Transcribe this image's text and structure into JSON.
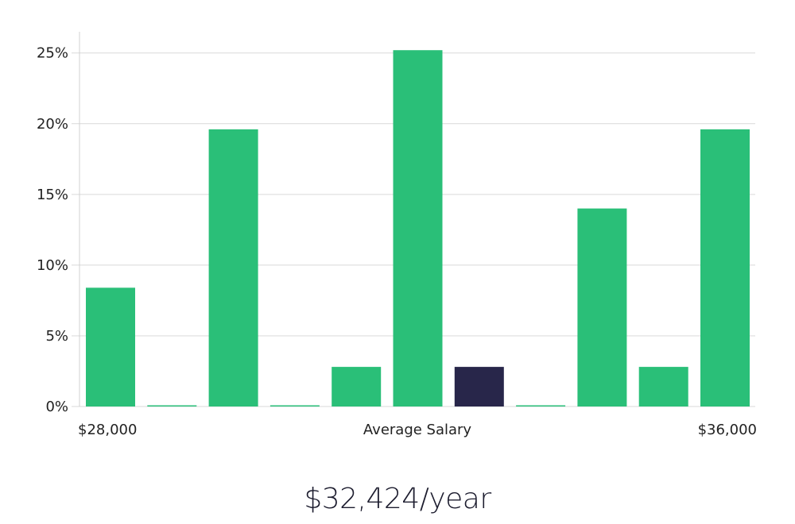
{
  "chart_data": {
    "type": "bar",
    "title": "",
    "xlabel": "Average Salary",
    "ylabel": "",
    "x_range_labels": {
      "min": "$28,000",
      "max": "$36,000"
    },
    "ylim": [
      0,
      26.5
    ],
    "yticks": [
      0,
      5,
      10,
      15,
      20,
      25
    ],
    "ytick_labels": [
      "0%",
      "5%",
      "10%",
      "15%",
      "20%",
      "25%"
    ],
    "values": [
      8.4,
      0,
      19.6,
      0,
      2.8,
      25.2,
      2.8,
      0,
      14.0,
      2.8,
      19.6
    ],
    "highlight_index": 6,
    "colors": {
      "bar": "#2abf78",
      "highlight": "#28264a",
      "grid": "#d9d9d9"
    }
  },
  "summary": {
    "salary_text": "$32,424/year"
  }
}
